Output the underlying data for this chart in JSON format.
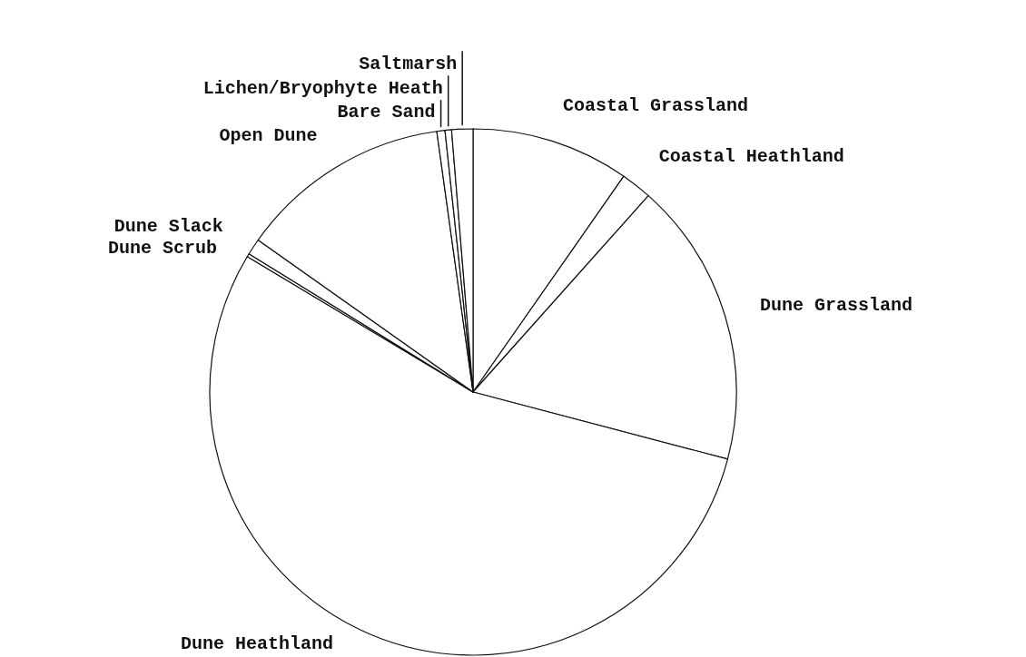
{
  "chart_data": {
    "type": "pie",
    "categories": [
      "Coastal Grassland",
      "Coastal Heathland",
      "Dune Grassland",
      "Dune Heathland",
      "Dune Scrub",
      "Dune Slack",
      "Open Dune",
      "Bare Sand",
      "Lichen/Bryophyte Heath",
      "Saltmarsh"
    ],
    "values": [
      9.7,
      1.9,
      17.5,
      54.5,
      0.2,
      1.0,
      13.0,
      0.5,
      0.4,
      1.3
    ],
    "colors": [
      "#ffffff",
      "#ffffff",
      "#ffffff",
      "#ffffff",
      "#ffffff",
      "#ffffff",
      "#ffffff",
      "#ffffff",
      "#ffffff",
      "#ffffff"
    ]
  }
}
